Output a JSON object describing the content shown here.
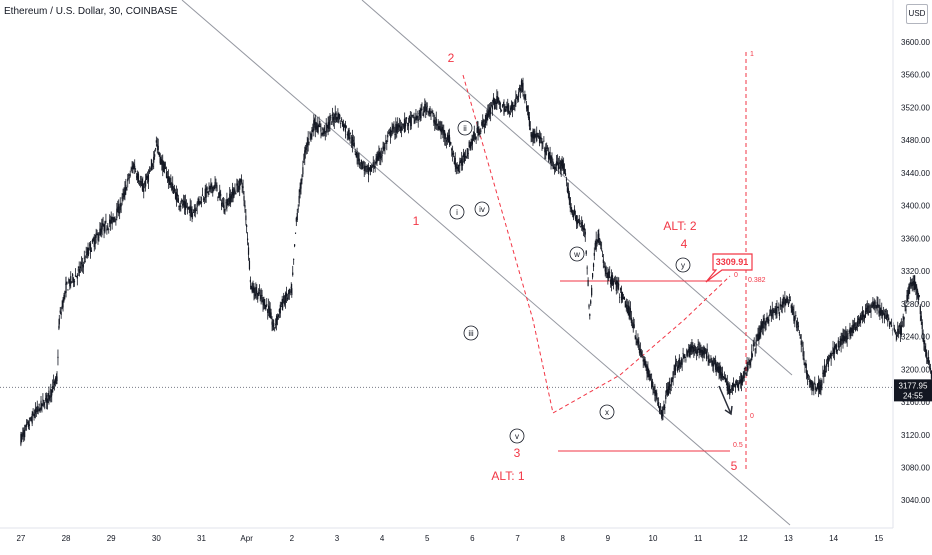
{
  "symbol": {
    "title": "Ethereum / U.S. Dollar, 30, COINBASE"
  },
  "price_axis": {
    "currency": "USD",
    "ticks": [
      "3600.00",
      "3560.00",
      "3520.00",
      "3480.00",
      "3440.00",
      "3400.00",
      "3360.00",
      "3320.00",
      "3280.00",
      "3240.00",
      "3200.00",
      "3160.00",
      "3120.00",
      "3080.00",
      "3040.00"
    ],
    "last_price": "3177.95",
    "countdown": "24:55"
  },
  "time_axis": {
    "ticks": [
      "27",
      "28",
      "29",
      "30",
      "31",
      "Apr",
      "2",
      "3",
      "4",
      "5",
      "6",
      "7",
      "8",
      "9",
      "10",
      "11",
      "12",
      "13",
      "14",
      "15"
    ]
  },
  "colors": {
    "accent": "#f23645",
    "line": "#9598a1",
    "candles": "#131722",
    "arrow": "#2a2e39"
  },
  "chart_data": {
    "type": "line",
    "series": [
      {
        "values": [
          [
            27.0,
            3115
          ],
          [
            27.3,
            3145
          ],
          [
            27.6,
            3165
          ],
          [
            27.8,
            3188
          ],
          [
            27.85,
            3260
          ],
          [
            28.0,
            3300
          ],
          [
            28.3,
            3320
          ],
          [
            28.5,
            3345
          ],
          [
            28.8,
            3372
          ],
          [
            29.0,
            3380
          ],
          [
            29.2,
            3398
          ],
          [
            29.4,
            3435
          ],
          [
            29.5,
            3450
          ],
          [
            29.7,
            3420
          ],
          [
            29.9,
            3445
          ],
          [
            30.0,
            3478
          ],
          [
            30.1,
            3455
          ],
          [
            30.3,
            3430
          ],
          [
            30.5,
            3405
          ],
          [
            30.8,
            3392
          ],
          [
            31.0,
            3410
          ],
          [
            31.3,
            3425
          ],
          [
            31.5,
            3398
          ],
          [
            31.7,
            3415
          ],
          [
            31.9,
            3430
          ],
          [
            32.0,
            3378
          ],
          [
            32.1,
            3300
          ],
          [
            32.3,
            3290
          ],
          [
            32.5,
            3272
          ],
          [
            32.6,
            3250
          ],
          [
            32.8,
            3282
          ],
          [
            33.0,
            3295
          ],
          [
            33.1,
            3380
          ],
          [
            33.3,
            3468
          ],
          [
            33.5,
            3500
          ],
          [
            33.7,
            3490
          ],
          [
            33.9,
            3505
          ],
          [
            34.0,
            3512
          ],
          [
            34.3,
            3485
          ],
          [
            34.5,
            3455
          ],
          [
            34.7,
            3440
          ],
          [
            35.0,
            3465
          ],
          [
            35.2,
            3490
          ],
          [
            35.5,
            3500
          ],
          [
            35.8,
            3508
          ],
          [
            36.0,
            3522
          ],
          [
            36.2,
            3500
          ],
          [
            36.5,
            3480
          ],
          [
            36.6,
            3455
          ],
          [
            36.7,
            3445
          ],
          [
            37.0,
            3480
          ],
          [
            37.3,
            3505
          ],
          [
            37.5,
            3530
          ],
          [
            37.7,
            3518
          ],
          [
            37.9,
            3520
          ],
          [
            38.1,
            3548
          ],
          [
            38.2,
            3525
          ],
          [
            38.3,
            3490
          ],
          [
            38.5,
            3480
          ],
          [
            38.7,
            3462
          ],
          [
            38.8,
            3448
          ],
          [
            39.0,
            3450
          ],
          [
            39.2,
            3395
          ],
          [
            39.4,
            3375
          ],
          [
            39.5,
            3370
          ],
          [
            39.6,
            3262
          ],
          [
            39.7,
            3345
          ],
          [
            39.8,
            3365
          ],
          [
            39.9,
            3330
          ],
          [
            40.0,
            3315
          ],
          [
            40.2,
            3302
          ],
          [
            40.5,
            3268
          ],
          [
            40.7,
            3225
          ],
          [
            41.0,
            3180
          ],
          [
            41.2,
            3145
          ],
          [
            41.3,
            3168
          ],
          [
            41.5,
            3202
          ],
          [
            41.8,
            3222
          ],
          [
            42.0,
            3226
          ],
          [
            42.2,
            3218
          ],
          [
            42.4,
            3205
          ],
          [
            42.5,
            3195
          ],
          [
            42.7,
            3175
          ],
          [
            42.9,
            3182
          ],
          [
            43.0,
            3190
          ],
          [
            43.2,
            3220
          ],
          [
            43.4,
            3250
          ],
          [
            43.6,
            3268
          ],
          [
            43.8,
            3272
          ],
          [
            43.9,
            3282
          ],
          [
            44.0,
            3285
          ],
          [
            44.1,
            3268
          ],
          [
            44.2,
            3255
          ],
          [
            44.4,
            3200
          ],
          [
            44.5,
            3180
          ],
          [
            44.7,
            3178
          ],
          [
            44.8,
            3200
          ],
          [
            45.0,
            3222
          ],
          [
            45.3,
            3242
          ],
          [
            45.6,
            3262
          ],
          [
            45.9,
            3280
          ],
          [
            46.2,
            3262
          ],
          [
            46.4,
            3245
          ],
          [
            46.5,
            3250
          ],
          [
            46.7,
            3305
          ],
          [
            46.8,
            3302
          ],
          [
            46.9,
            3285
          ],
          [
            47.0,
            3232
          ],
          [
            47.2,
            3188
          ],
          [
            47.3,
            3170
          ],
          [
            47.5,
            3182
          ],
          [
            47.6,
            3178
          ]
        ]
      }
    ],
    "xlim": [
      26.6,
      48.8
    ],
    "ylim": [
      3014,
      3632
    ],
    "title": "Ethereum / U.S. Dollar, 30, COINBASE",
    "xlabel": "",
    "ylabel": "",
    "grid": false,
    "last_price": 3177.95,
    "levels": [
      {
        "label": "3309.91",
        "value": 3309.91,
        "fib": "0",
        "fib_ratio": "0.382"
      },
      {
        "value": 3100,
        "fib_ratio": "0.5"
      }
    ],
    "annotations": {
      "red": [
        "2",
        "1",
        "3",
        "ALT: 1",
        "ALT: 2",
        "4",
        "5"
      ],
      "circled": [
        "ii",
        "i",
        "iv",
        "iii",
        "v",
        "w",
        "x",
        "y"
      ],
      "fib": [
        "1",
        "0",
        "0"
      ]
    }
  }
}
